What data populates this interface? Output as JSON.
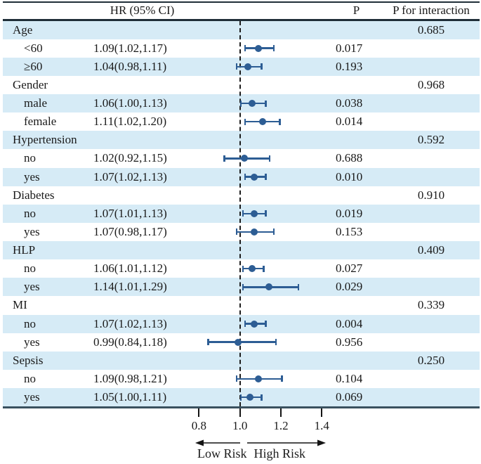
{
  "chart_data": {
    "type": "forest",
    "columns": {
      "hr_header": "HR (95% CI)",
      "p_header": "P",
      "p_interaction_header": "P for interaction"
    },
    "axis": {
      "ticks": [
        0.8,
        1.0,
        1.2,
        1.4
      ],
      "tick_labels": [
        "0.8",
        "1.0",
        "1.2",
        "1.4"
      ],
      "reference_line": 1.0,
      "xlim": [
        0.76,
        1.44
      ],
      "low_label": "Low Risk",
      "high_label": "High Risk"
    },
    "rows": [
      {
        "label": "Age",
        "type": "group",
        "p_interaction": "0.685"
      },
      {
        "label": "<60",
        "type": "sub",
        "hr_text": "1.09(1.02,1.17)",
        "hr": 1.09,
        "lo": 1.02,
        "hi": 1.17,
        "p": "0.017"
      },
      {
        "label": "≥60",
        "type": "sub",
        "hr_text": "1.04(0.98,1.11)",
        "hr": 1.04,
        "lo": 0.98,
        "hi": 1.11,
        "p": "0.193"
      },
      {
        "label": "Gender",
        "type": "group",
        "p_interaction": "0.968"
      },
      {
        "label": "male",
        "type": "sub",
        "hr_text": "1.06(1.00,1.13)",
        "hr": 1.06,
        "lo": 1.0,
        "hi": 1.13,
        "p": "0.038"
      },
      {
        "label": "female",
        "type": "sub",
        "hr_text": "1.11(1.02,1.20)",
        "hr": 1.11,
        "lo": 1.02,
        "hi": 1.2,
        "p": "0.014"
      },
      {
        "label": "Hypertension",
        "type": "group",
        "p_interaction": "0.592"
      },
      {
        "label": "no",
        "type": "sub",
        "hr_text": "1.02(0.92,1.15)",
        "hr": 1.02,
        "lo": 0.92,
        "hi": 1.15,
        "p": "0.688"
      },
      {
        "label": "yes",
        "type": "sub",
        "hr_text": "1.07(1.02,1.13)",
        "hr": 1.07,
        "lo": 1.02,
        "hi": 1.13,
        "p": "0.010"
      },
      {
        "label": "Diabetes",
        "type": "group",
        "p_interaction": "0.910"
      },
      {
        "label": "no",
        "type": "sub",
        "hr_text": "1.07(1.01,1.13)",
        "hr": 1.07,
        "lo": 1.01,
        "hi": 1.13,
        "p": "0.019"
      },
      {
        "label": "yes",
        "type": "sub",
        "hr_text": "1.07(0.98,1.17)",
        "hr": 1.07,
        "lo": 0.98,
        "hi": 1.17,
        "p": "0.153"
      },
      {
        "label": "HLP",
        "type": "group",
        "p_interaction": "0.409"
      },
      {
        "label": "no",
        "type": "sub",
        "hr_text": "1.06(1.01,1.12)",
        "hr": 1.06,
        "lo": 1.01,
        "hi": 1.12,
        "p": "0.027"
      },
      {
        "label": "yes",
        "type": "sub",
        "hr_text": "1.14(1.01,1.29)",
        "hr": 1.14,
        "lo": 1.01,
        "hi": 1.29,
        "p": "0.029"
      },
      {
        "label": "MI",
        "type": "group",
        "p_interaction": "0.339"
      },
      {
        "label": "no",
        "type": "sub",
        "hr_text": "1.07(1.02,1.13)",
        "hr": 1.07,
        "lo": 1.02,
        "hi": 1.13,
        "p": "0.004"
      },
      {
        "label": "yes",
        "type": "sub",
        "hr_text": "0.99(0.84,1.18)",
        "hr": 0.99,
        "lo": 0.84,
        "hi": 1.18,
        "p": "0.956"
      },
      {
        "label": "Sepsis",
        "type": "group",
        "p_interaction": "0.250"
      },
      {
        "label": "no",
        "type": "sub",
        "hr_text": "1.09(0.98,1.21)",
        "hr": 1.09,
        "lo": 0.98,
        "hi": 1.21,
        "p": "0.104"
      },
      {
        "label": "yes",
        "type": "sub",
        "hr_text": "1.05(1.00,1.11)",
        "hr": 1.05,
        "lo": 1.0,
        "hi": 1.11,
        "p": "0.069"
      }
    ],
    "colors": {
      "stripe": "#d6ebf6",
      "marker": "#2d5d94",
      "rule": "#1f2e38",
      "axis_rule": "#3a515f",
      "dashed": "#1c1c1c",
      "text": "#1a1a1a"
    }
  }
}
